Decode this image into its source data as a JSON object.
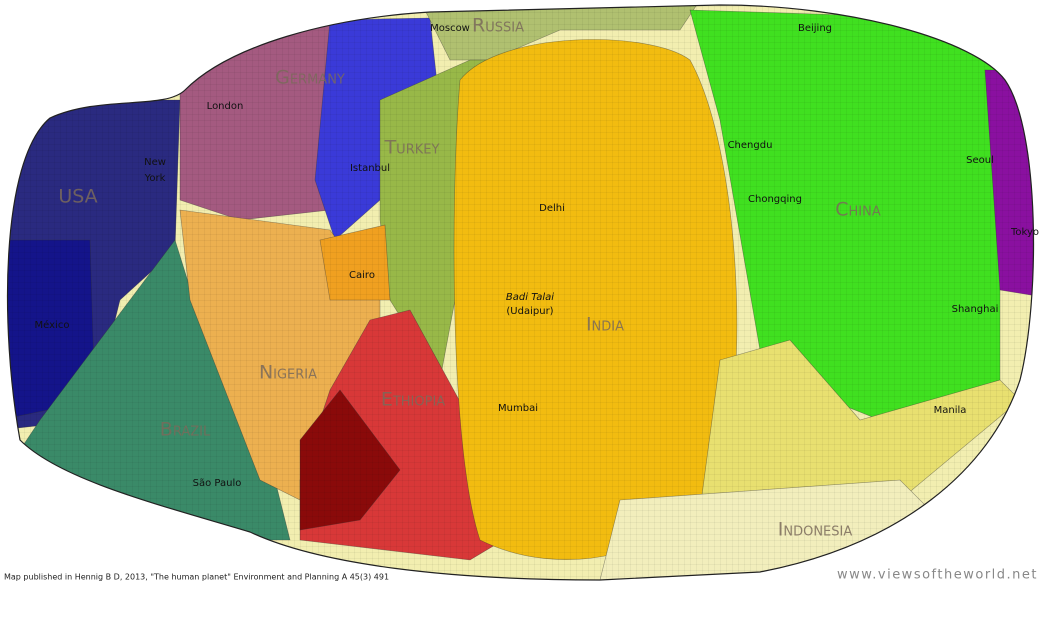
{
  "map": {
    "countries": [
      "USA",
      "Germany",
      "Russia",
      "Turkey",
      "Nigeria",
      "Ethiopia",
      "Brazil",
      "India",
      "China",
      "Indonesia"
    ],
    "cities": [
      "Moscow",
      "London",
      "New",
      "York",
      "México",
      "Istanbul",
      "Cairo",
      "São Paulo",
      "Delhi",
      "Badi Talai",
      "(Udaipur)",
      "Mumbai",
      "Beijing",
      "Chengdu",
      "Chongqing",
      "Seoul",
      "Tokyo",
      "Shanghai",
      "Manila"
    ]
  },
  "footer": {
    "source": "Map published in Hennig B D, 2013, \"The human planet\" Environment and Planning A 45(3) 491",
    "website": "www.viewsoftheworld.net"
  }
}
